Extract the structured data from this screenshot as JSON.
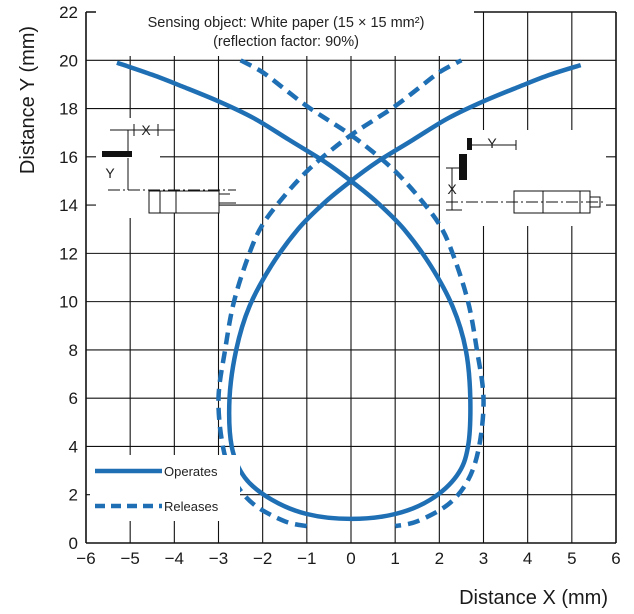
{
  "chart_data": {
    "type": "line",
    "title": "",
    "xlabel": "Distance X (mm)",
    "ylabel": "Distance Y (mm)",
    "xlim": [
      -6,
      6
    ],
    "ylim": [
      0,
      22
    ],
    "x_ticks": [
      -6,
      -5,
      -4,
      -3,
      -2,
      -1,
      0,
      1,
      2,
      3,
      4,
      5,
      6
    ],
    "y_ticks": [
      0,
      2,
      4,
      6,
      8,
      10,
      12,
      14,
      16,
      18,
      20,
      22
    ],
    "x_tick_labels": [
      "−6",
      "−5",
      "−4",
      "−3",
      "−2",
      "−1",
      "0",
      "1",
      "2",
      "3",
      "4",
      "5",
      "6"
    ],
    "y_tick_labels": [
      "0",
      "2",
      "4",
      "6",
      "8",
      "10",
      "12",
      "14",
      "16",
      "18",
      "20",
      "22"
    ],
    "grid": true,
    "annotation_line1": "Sensing object: White paper (15 × 15 mm²)",
    "annotation_line2": "(reflection factor: 90%)",
    "diagram_labels": {
      "x": "X",
      "y": "Y"
    },
    "legend_position": "bottom-left",
    "series": [
      {
        "name": "Operates",
        "style": "solid",
        "color": "#1f6fb5",
        "x": [
          5.2,
          4.5,
          3.8,
          3.0,
          2.2,
          1.4,
          0.6,
          0.0,
          -0.6,
          -1.2,
          -1.8,
          -2.3,
          -2.6,
          -2.75,
          -2.7,
          -2.4,
          -1.8,
          -1.0,
          0.0,
          1.0,
          1.8,
          2.4,
          2.65,
          2.7,
          2.6,
          2.3,
          1.8,
          1.2,
          0.6,
          0.0,
          -0.6,
          -1.4,
          -2.2,
          -3.0,
          -3.8,
          -4.5,
          -5.3
        ],
        "y": [
          19.8,
          19.4,
          18.9,
          18.3,
          17.6,
          16.7,
          15.8,
          15.0,
          14.1,
          13.0,
          11.5,
          9.8,
          8.0,
          6.0,
          4.0,
          2.7,
          1.8,
          1.2,
          1.0,
          1.2,
          1.8,
          2.8,
          4.0,
          6.0,
          8.0,
          9.8,
          11.5,
          13.0,
          14.1,
          15.0,
          15.8,
          16.7,
          17.6,
          18.3,
          18.9,
          19.4,
          19.9
        ]
      },
      {
        "name": "Releases",
        "style": "dashed",
        "color": "#1f6fb5",
        "x": [
          -2.5,
          -2.0,
          -1.5,
          -1.0,
          -0.5,
          0.0,
          0.5,
          1.0,
          1.5,
          2.0,
          2.3,
          2.65,
          2.85,
          3.0,
          2.9,
          2.65,
          2.2,
          1.5,
          1.0,
          null,
          -1.0,
          -1.5,
          -2.2,
          -2.65,
          -2.9,
          -3.0,
          -2.85,
          -2.65,
          -2.3,
          -2.0,
          -1.5,
          -1.0,
          -0.5,
          0.0,
          0.5,
          1.0,
          1.5,
          2.0,
          2.5
        ],
        "y": [
          20.0,
          19.5,
          18.8,
          18.1,
          17.5,
          16.9,
          16.2,
          15.4,
          14.4,
          13.2,
          12.0,
          10.0,
          8.0,
          6.0,
          4.0,
          2.6,
          1.6,
          0.9,
          0.7,
          null,
          0.7,
          0.9,
          1.6,
          2.6,
          4.0,
          6.0,
          8.0,
          10.0,
          12.0,
          13.2,
          14.4,
          15.4,
          16.2,
          16.9,
          17.5,
          18.1,
          18.8,
          19.5,
          20.0
        ]
      }
    ]
  }
}
